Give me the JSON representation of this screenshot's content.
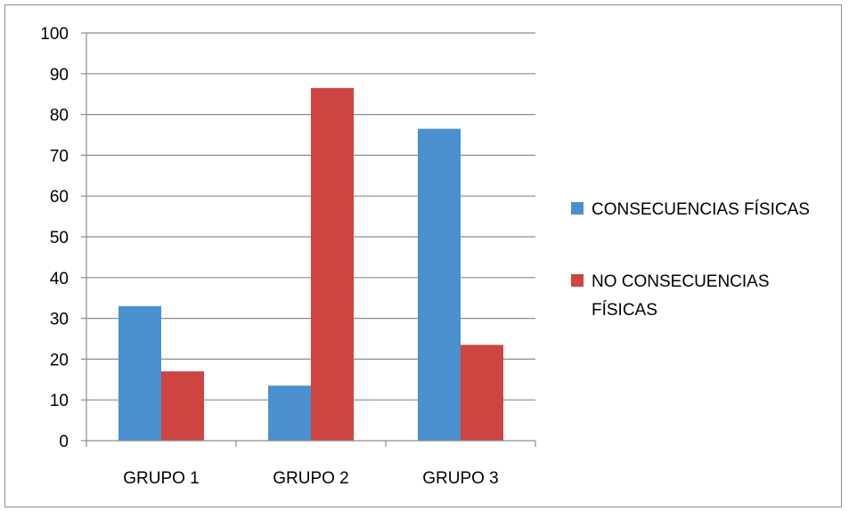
{
  "chart_data": {
    "type": "bar",
    "title": "",
    "xlabel": "",
    "ylabel": "",
    "ylim": [
      0,
      100
    ],
    "yticks": [
      0,
      10,
      20,
      30,
      40,
      50,
      60,
      70,
      80,
      90,
      100
    ],
    "grid": true,
    "legend_position": "right",
    "categories": [
      "GRUPO 1",
      "GRUPO 2",
      "GRUPO 3"
    ],
    "series": [
      {
        "name": "CONSECUENCIAS FÍSICAS",
        "color": "#4a90cf",
        "values": [
          33,
          13.5,
          76.5
        ]
      },
      {
        "name": "NO CONSECUENCIAS FÍSICAS",
        "color": "#cd4440",
        "values": [
          17,
          86.5,
          23.5
        ]
      }
    ],
    "legend_lines": [
      [
        "CONSECUENCIAS FÍSICAS"
      ],
      [
        "NO CONSECUENCIAS",
        "FÍSICAS"
      ]
    ]
  }
}
